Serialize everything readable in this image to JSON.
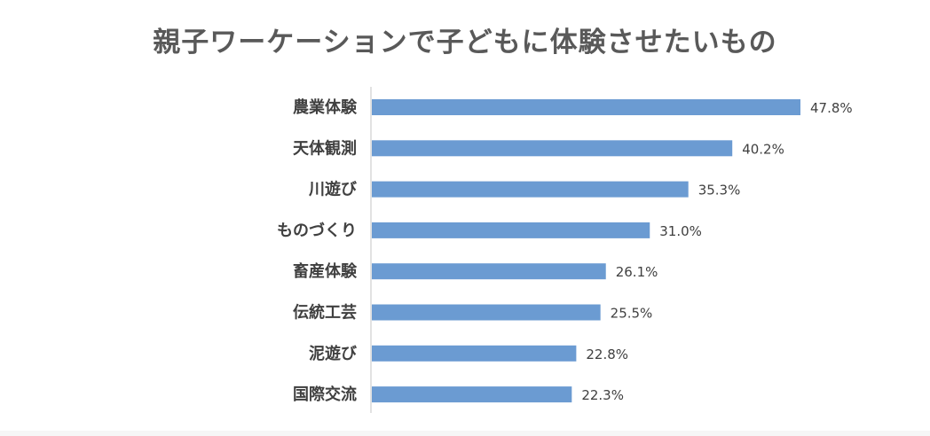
{
  "chart_data": {
    "type": "bar",
    "orientation": "horizontal",
    "title": "親子ワーケーションで子どもに体験させたいもの",
    "categories": [
      "農業体験",
      "天体観測",
      "川遊び",
      "ものづくり",
      "畜産体験",
      "伝統工芸",
      "泥遊び",
      "国際交流"
    ],
    "values": [
      47.8,
      40.2,
      35.3,
      31.0,
      26.1,
      25.5,
      22.8,
      22.3
    ],
    "value_labels": [
      "47.8%",
      "40.2%",
      "35.3%",
      "31.0%",
      "26.1%",
      "25.5%",
      "22.8%",
      "22.3%"
    ],
    "xlim": [
      0,
      50
    ],
    "grid": false,
    "legend": "none",
    "colors": {
      "bar": "#6b9bd2",
      "axis": "#d9d9d9",
      "text": "#404040",
      "title": "#595959"
    }
  }
}
